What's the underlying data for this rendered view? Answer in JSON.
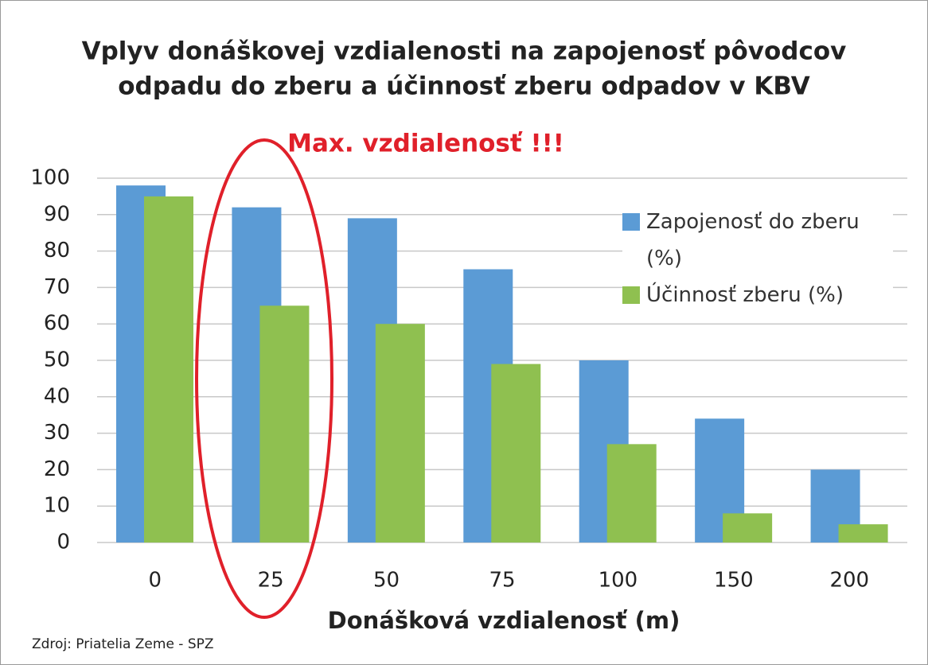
{
  "chart_data": {
    "type": "bar",
    "title": [
      "Vplyv donáškovej vzdialenosti na zapojenosť pôvodcov",
      "odpadu do zberu a účinnosť zberu odpadov v KBV"
    ],
    "annotation": "Max. vzdialenosť !!!",
    "x_label": "Donášková vzdialenosť (m)",
    "source": "Zdroj: Priatelia Zeme - SPZ",
    "categories": [
      "0",
      "25",
      "50",
      "75",
      "100",
      "150",
      "200"
    ],
    "series": [
      {
        "name": "Zapojenosť do zberu (%)",
        "color": "#5b9bd5",
        "values": [
          98,
          92,
          89,
          75,
          50,
          34,
          20
        ]
      },
      {
        "name": "Účinnosť zberu (%)",
        "color": "#8fc050",
        "values": [
          95,
          65,
          60,
          49,
          27,
          8,
          5
        ]
      }
    ],
    "ylim": [
      0,
      100
    ],
    "yticks": [
      0,
      10,
      20,
      30,
      40,
      50,
      60,
      70,
      80,
      90,
      100
    ],
    "grid": true,
    "legend": "right"
  }
}
